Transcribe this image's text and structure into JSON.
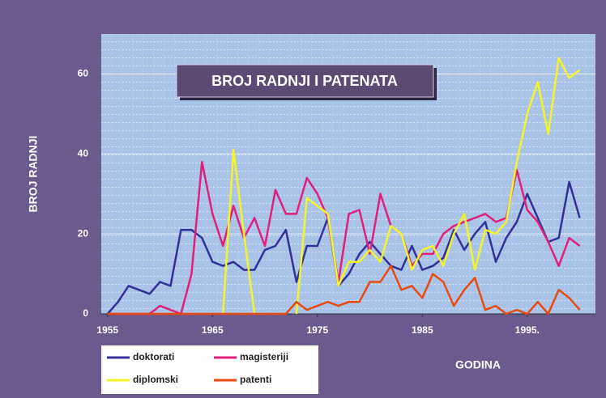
{
  "chart_data": {
    "type": "line",
    "title": "BROJ RADNJI I PATENATA",
    "xlabel": "GODINA",
    "ylabel": "BROJ RADNJI",
    "x": [
      1955,
      1956,
      1957,
      1958,
      1959,
      1960,
      1961,
      1962,
      1963,
      1964,
      1965,
      1966,
      1967,
      1968,
      1969,
      1970,
      1971,
      1972,
      1973,
      1974,
      1975,
      1976,
      1977,
      1978,
      1979,
      1980,
      1981,
      1982,
      1983,
      1984,
      1985,
      1986,
      1987,
      1988,
      1989,
      1990,
      1991,
      1992,
      1993,
      1994,
      1995,
      1996,
      1997,
      1998,
      1999,
      2000
    ],
    "series": [
      {
        "name": "doktorati",
        "color": "#33309a",
        "values": [
          0,
          3,
          7,
          6,
          5,
          8,
          7,
          21,
          21,
          19,
          13,
          12,
          13,
          11,
          11,
          16,
          17,
          21,
          8,
          17,
          17,
          24,
          7,
          10,
          15,
          18,
          15,
          12,
          11,
          17,
          11,
          12,
          14,
          21,
          16,
          20,
          23,
          13,
          19,
          23,
          30,
          24,
          18,
          19,
          33,
          24
        ]
      },
      {
        "name": "magisteriji",
        "color": "#e0207a",
        "values": [
          0,
          0,
          0,
          0,
          0,
          2,
          1,
          0,
          10,
          38,
          25,
          17,
          27,
          19,
          24,
          17,
          31,
          25,
          25,
          34,
          30,
          24,
          8,
          25,
          26,
          15,
          30,
          22,
          20,
          12,
          15,
          15,
          20,
          22,
          23,
          24,
          25,
          23,
          24,
          36,
          26,
          23,
          18,
          12,
          19,
          17
        ]
      },
      {
        "name": "diplomski",
        "color": "#f4f428",
        "values": [
          null,
          null,
          null,
          null,
          null,
          null,
          null,
          null,
          null,
          null,
          null,
          0,
          41,
          20,
          0,
          null,
          null,
          null,
          0,
          29,
          27,
          25,
          7,
          13,
          13,
          16,
          13,
          22,
          20,
          11,
          16,
          17,
          12,
          20,
          25,
          11,
          21,
          20,
          23,
          38,
          50,
          58,
          45,
          64,
          59,
          61
        ]
      },
      {
        "name": "patenti",
        "color": "#e84a10",
        "values": [
          0,
          0,
          0,
          0,
          0,
          0,
          0,
          0,
          0,
          0,
          0,
          0,
          0,
          0,
          0,
          0,
          0,
          0,
          3,
          1,
          2,
          3,
          2,
          3,
          3,
          8,
          8,
          12,
          6,
          7,
          4,
          10,
          8,
          2,
          6,
          9,
          1,
          2,
          0,
          1,
          0,
          3,
          0,
          6,
          4,
          1
        ]
      }
    ],
    "xlim": [
      1954.4,
      2001.5
    ],
    "xticks": [
      1955,
      1965,
      1975,
      1985,
      {
        "value": 1995,
        "label": "1995."
      }
    ],
    "ylim": [
      0,
      70
    ],
    "yticks": [
      0,
      20,
      40,
      60
    ],
    "grid": true
  }
}
